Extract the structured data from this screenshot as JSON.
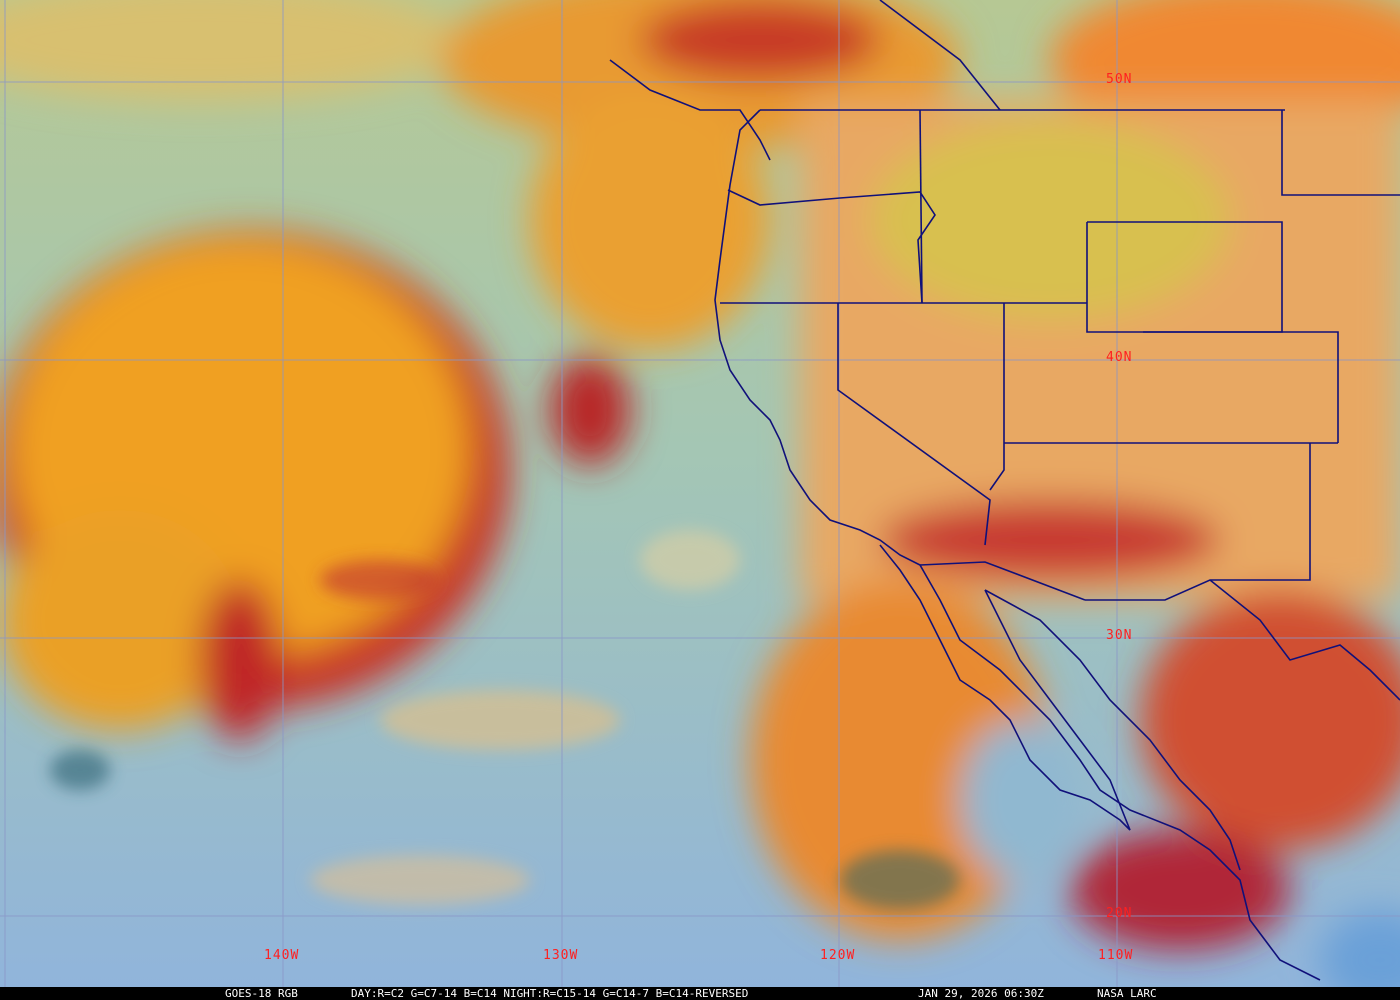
{
  "caption": {
    "satellite": "GOES-18 RGB",
    "recipe": "DAY:R=C2 G=C7-14 B=C14 NIGHT:R=C15-14 G=C14-7 B=C14-REVERSED",
    "datetime": "JAN 29, 2026 06:30Z",
    "source": "NASA LARC"
  },
  "grid": {
    "latitudes": [
      "50N",
      "40N",
      "30N",
      "20N"
    ],
    "longitudes": [
      "140W",
      "130W",
      "120W",
      "110W"
    ],
    "line_color": "#8a96c8",
    "label_color": "#ff2020"
  },
  "colors": {
    "clear_ocean": "#a4c6b4",
    "southern_ocean": "#90b4dc",
    "high_cloud": "#f0a020",
    "cloud_edge": "#c02828",
    "land": "#e8a864",
    "borders": "#10107a"
  }
}
